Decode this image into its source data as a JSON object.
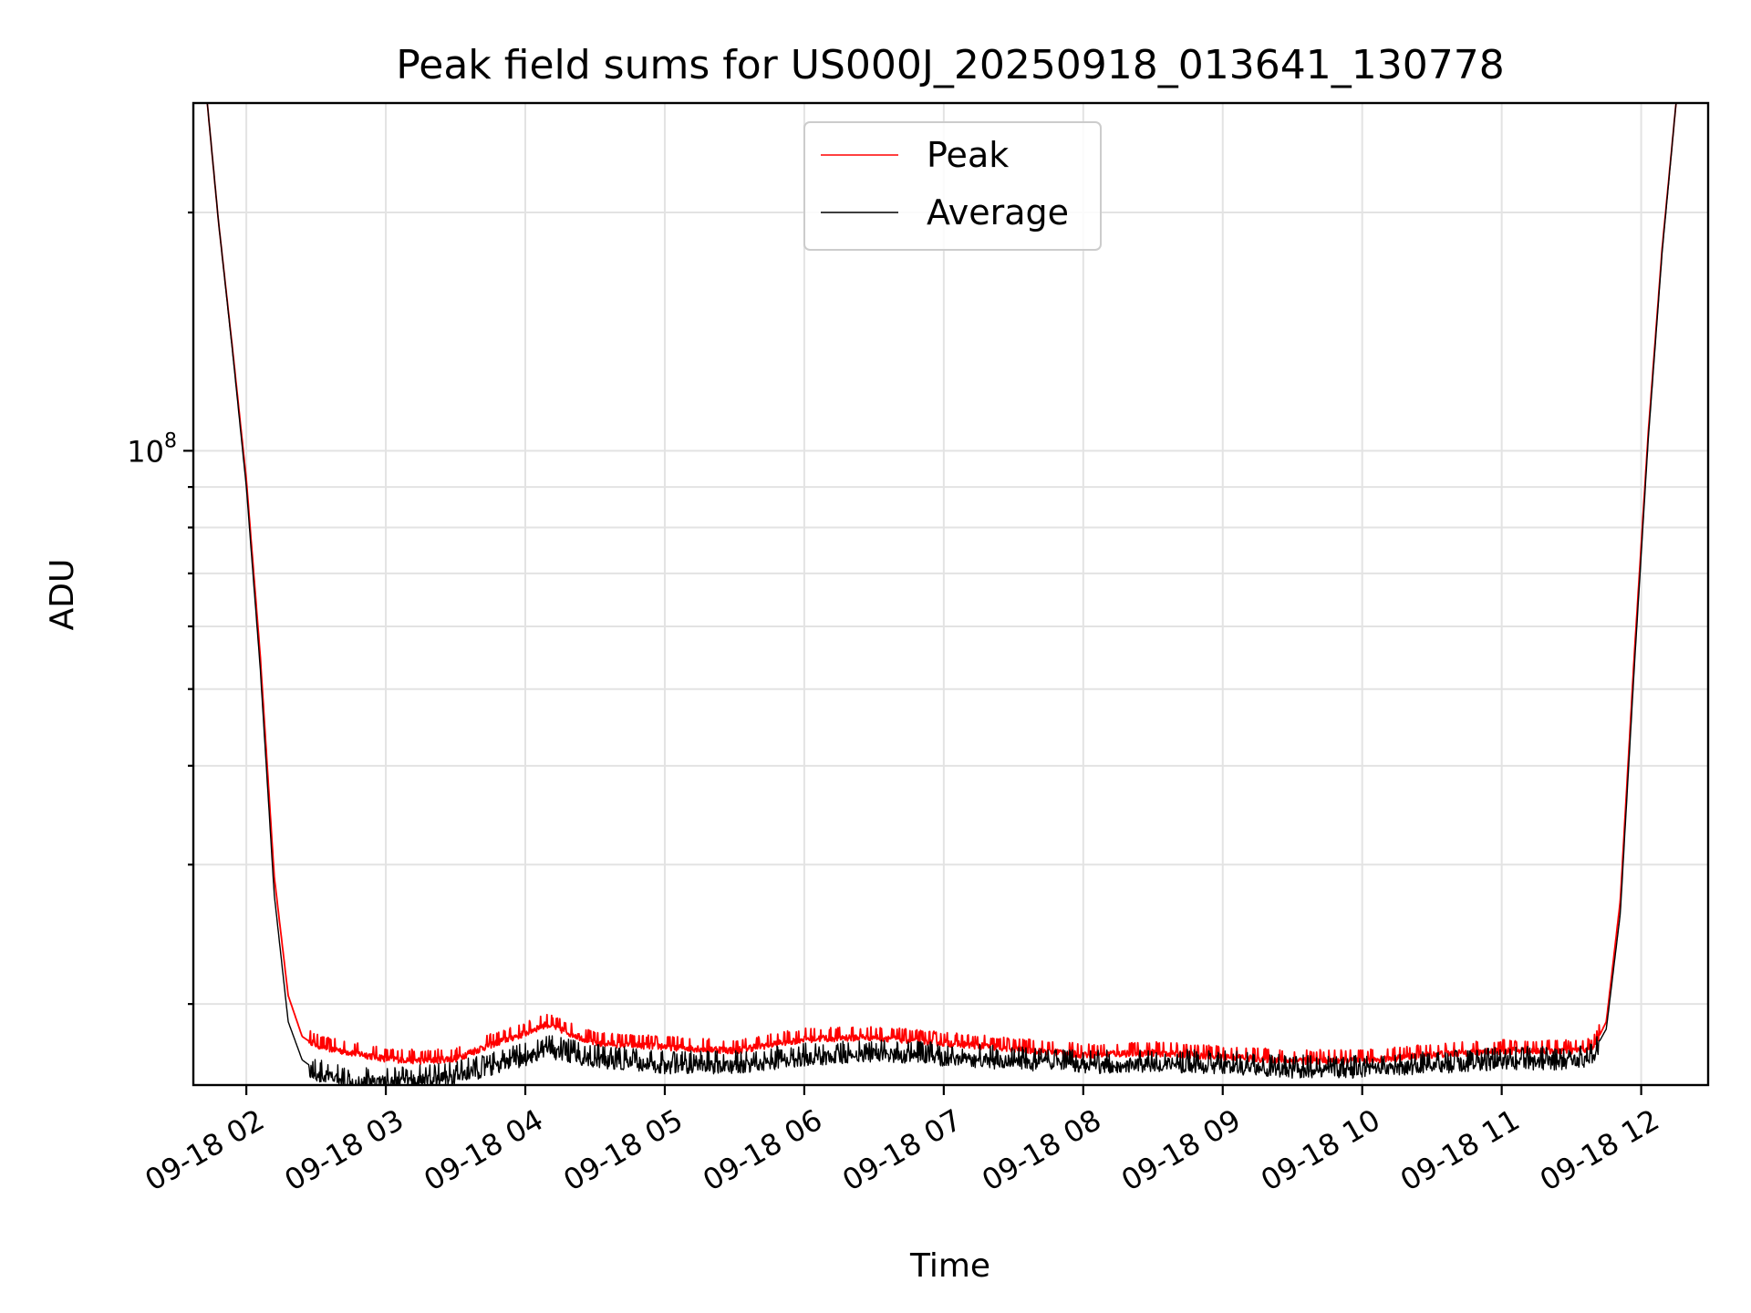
{
  "chart_data": {
    "type": "line",
    "title": "Peak field sums for US000J_20250918_013641_130778",
    "xlabel": "Time",
    "ylabel": "ADU",
    "yscale": "log",
    "xlim_hours": [
      1.62,
      12.48
    ],
    "ylim": [
      15800000,
      275000000
    ],
    "grid": true,
    "legend_position": "upper-center",
    "x_ticks": [
      {
        "hour": 2,
        "label": "09-18 02"
      },
      {
        "hour": 3,
        "label": "09-18 03"
      },
      {
        "hour": 4,
        "label": "09-18 04"
      },
      {
        "hour": 5,
        "label": "09-18 05"
      },
      {
        "hour": 6,
        "label": "09-18 06"
      },
      {
        "hour": 7,
        "label": "09-18 07"
      },
      {
        "hour": 8,
        "label": "09-18 08"
      },
      {
        "hour": 9,
        "label": "09-18 09"
      },
      {
        "hour": 10,
        "label": "09-18 10"
      },
      {
        "hour": 11,
        "label": "09-18 11"
      },
      {
        "hour": 12,
        "label": "09-18 12"
      }
    ],
    "y_major_ticks": [
      {
        "value": 100000000,
        "base": "10",
        "exp": "8"
      }
    ],
    "y_minor_ticks": [
      20000000,
      30000000,
      40000000,
      50000000,
      60000000,
      70000000,
      80000000,
      90000000,
      200000000
    ],
    "series": [
      {
        "name": "Peak",
        "color": "#ff0000",
        "x_hours": [
          1.62,
          1.72,
          1.8,
          1.9,
          2.0,
          2.1,
          2.2,
          2.3,
          2.4,
          2.5,
          2.6,
          2.75,
          3.0,
          3.25,
          3.5,
          3.75,
          4.0,
          4.15,
          4.5,
          5.0,
          5.5,
          6.0,
          6.5,
          7.0,
          7.5,
          8.0,
          8.5,
          9.0,
          9.5,
          10.0,
          10.5,
          11.0,
          11.5,
          11.65,
          11.75,
          11.85,
          11.95,
          12.05,
          12.15,
          12.25,
          12.35,
          12.48
        ],
        "values": [
          275000000,
          275000000,
          195000000,
          135000000,
          92000000,
          55000000,
          29000000,
          20500000,
          18200000,
          17700000,
          17500000,
          17300000,
          17000000,
          16900000,
          17000000,
          17700000,
          18300000,
          18800000,
          17800000,
          17600000,
          17400000,
          18000000,
          18100000,
          17800000,
          17500000,
          17200000,
          17300000,
          17100000,
          16900000,
          16900000,
          17200000,
          17400000,
          17400000,
          17500000,
          19000000,
          27000000,
          55000000,
          105000000,
          180000000,
          275000000,
          275000000,
          275000000
        ]
      },
      {
        "name": "Average",
        "color": "#000000",
        "x_hours": [
          1.62,
          1.72,
          1.8,
          1.9,
          2.0,
          2.1,
          2.2,
          2.3,
          2.4,
          2.5,
          2.6,
          2.75,
          3.0,
          3.25,
          3.5,
          3.75,
          4.0,
          4.15,
          4.5,
          5.0,
          5.5,
          6.0,
          6.5,
          7.0,
          7.5,
          8.0,
          8.5,
          9.0,
          9.5,
          10.0,
          10.5,
          11.0,
          11.5,
          11.65,
          11.75,
          11.85,
          11.95,
          12.05,
          12.15,
          12.25,
          12.35,
          12.48
        ],
        "values": [
          275000000,
          275000000,
          195000000,
          134000000,
          90000000,
          53000000,
          27500000,
          19000000,
          17000000,
          16500000,
          16300000,
          16200000,
          16100000,
          16200000,
          16400000,
          16800000,
          17300000,
          17700000,
          17200000,
          16900000,
          16900000,
          17300000,
          17500000,
          17300000,
          17100000,
          16900000,
          17000000,
          16900000,
          16700000,
          16700000,
          16900000,
          17100000,
          17100000,
          17300000,
          18600000,
          26000000,
          53000000,
          103000000,
          178000000,
          275000000,
          275000000,
          275000000
        ]
      }
    ]
  }
}
